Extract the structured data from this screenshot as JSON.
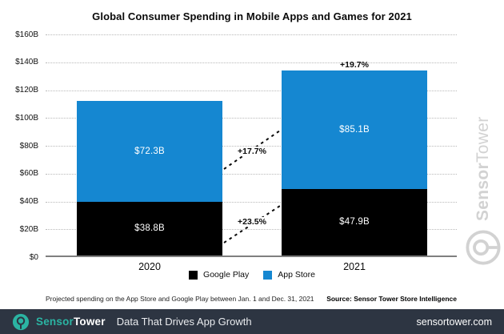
{
  "title": "Global Consumer Spending in Mobile Apps and Games for 2021",
  "chart_data": {
    "type": "bar",
    "subtype": "stacked",
    "categories": [
      "2020",
      "2021"
    ],
    "series": [
      {
        "name": "Google Play",
        "color": "#000000",
        "values": [
          38.8,
          47.9
        ],
        "value_labels": [
          "$38.8B",
          "$47.9B"
        ]
      },
      {
        "name": "App Store",
        "color": "#1587d1",
        "values": [
          72.3,
          85.1
        ],
        "value_labels": [
          "$72.3B",
          "$85.1B"
        ]
      }
    ],
    "totals": [
      111.1,
      133.0
    ],
    "total_growth_label": "+19.7%",
    "total_growth_category_index": 1,
    "segment_growth_labels": [
      {
        "series": "App Store",
        "label": "+17.7%"
      },
      {
        "series": "Google Play",
        "label": "+23.5%"
      }
    ],
    "title": "Global Consumer Spending in Mobile Apps and Games for 2021",
    "xlabel": "",
    "ylabel": "",
    "ylim": [
      0,
      160
    ],
    "ytick_step": 20,
    "ytick_labels": [
      "$0",
      "$20B",
      "$40B",
      "$60B",
      "$80B",
      "$100B",
      "$120B",
      "$140B",
      "$160B"
    ],
    "grid": "horizontal-dotted",
    "legend_position": "bottom"
  },
  "legend": [
    {
      "label": "Google Play",
      "color": "#000000"
    },
    {
      "label": "App Store",
      "color": "#1587d1"
    }
  ],
  "footnote": "Projected spending on the App Store and Google Play between Jan. 1 and Dec. 31, 2021",
  "source": "Source: Sensor Tower Store Intelligence",
  "watermark": {
    "brand_bold": "Sensor",
    "brand_light": "Tower"
  },
  "banner": {
    "brand_teal": "Sensor",
    "brand_white": "Tower",
    "tagline": "Data That Drives App Growth",
    "website": "sensortower.com",
    "bg_color": "#2d3542",
    "accent_color": "#2bb4a3"
  }
}
